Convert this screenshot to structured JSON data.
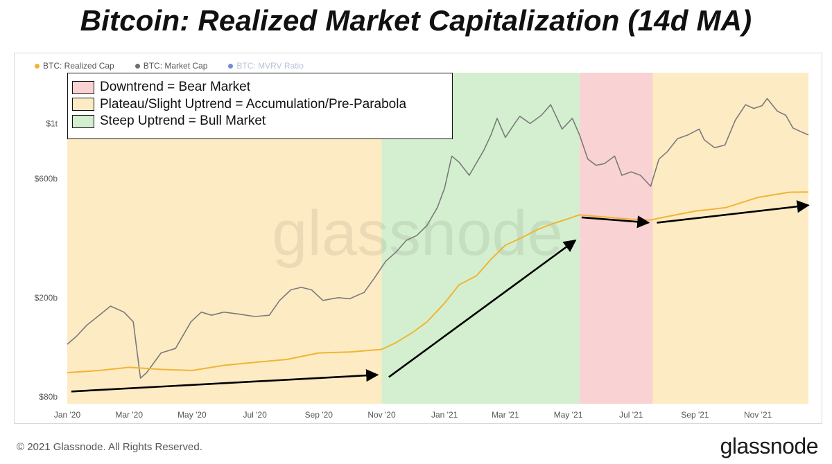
{
  "title": "Bitcoin: Realized Market Capitalization (14d MA)",
  "legend": [
    {
      "label": "BTC: Realized Cap",
      "color": "#f1b434",
      "muted": false
    },
    {
      "label": "BTC: Market Cap",
      "color": "#6e6e6e",
      "muted": false
    },
    {
      "label": "BTC: MVRV Ratio",
      "color": "#6f8fd8",
      "muted": true
    }
  ],
  "annotation_box": {
    "rows": [
      {
        "label": "Downtrend = Bear Market",
        "color": "#f9d3d3"
      },
      {
        "label": "Plateau/Slight Uptrend = Accumulation/Pre-Parabola",
        "color": "#fdebc3"
      },
      {
        "label": "Steep Uptrend = Bull Market",
        "color": "#d4efcf"
      }
    ]
  },
  "watermark": "glassnode",
  "footer": {
    "copyright": "© 2021 Glassnode. All Rights Reserved.",
    "logo": "glassnode"
  },
  "chart_data": {
    "type": "line",
    "title": "Bitcoin: Realized Market Capitalization (14d MA)",
    "xlabel": "",
    "ylabel": "",
    "y_scale": "log",
    "ylim": [
      75,
      1600
    ],
    "xlim": [
      "2020-01-01",
      "2021-12-20"
    ],
    "yticks": [
      {
        "value": 80,
        "label": "$80b"
      },
      {
        "value": 200,
        "label": "$200b"
      },
      {
        "value": 600,
        "label": "$600b"
      },
      {
        "value": 1000,
        "label": "$1t"
      }
    ],
    "xticks": [
      {
        "date": "2020-01-01",
        "label": "Jan '20"
      },
      {
        "date": "2020-03-01",
        "label": "Mar '20"
      },
      {
        "date": "2020-05-01",
        "label": "May '20"
      },
      {
        "date": "2020-07-01",
        "label": "Jul '20"
      },
      {
        "date": "2020-09-01",
        "label": "Sep '20"
      },
      {
        "date": "2020-11-01",
        "label": "Nov '20"
      },
      {
        "date": "2021-01-01",
        "label": "Jan '21"
      },
      {
        "date": "2021-03-01",
        "label": "Mar '21"
      },
      {
        "date": "2021-05-01",
        "label": "May '21"
      },
      {
        "date": "2021-07-01",
        "label": "Jul '21"
      },
      {
        "date": "2021-09-01",
        "label": "Sep '21"
      },
      {
        "date": "2021-11-01",
        "label": "Nov '21"
      }
    ],
    "regions": [
      {
        "start": "2020-01-01",
        "end": "2020-11-01",
        "type": "accumulation",
        "color": "#fdebc3"
      },
      {
        "start": "2020-11-01",
        "end": "2021-05-12",
        "type": "bull",
        "color": "#d4efcf"
      },
      {
        "start": "2021-05-12",
        "end": "2021-07-22",
        "type": "bear",
        "color": "#f9d3d3"
      },
      {
        "start": "2021-07-22",
        "end": "2021-12-20",
        "type": "accumulation",
        "color": "#fdebc3"
      }
    ],
    "series": [
      {
        "name": "BTC: Market Cap",
        "color": "#7a7a7a",
        "points": [
          [
            "2020-01-01",
            130
          ],
          [
            "2020-01-10",
            140
          ],
          [
            "2020-01-20",
            155
          ],
          [
            "2020-02-01",
            170
          ],
          [
            "2020-02-12",
            185
          ],
          [
            "2020-02-25",
            175
          ],
          [
            "2020-03-05",
            160
          ],
          [
            "2020-03-12",
            95
          ],
          [
            "2020-03-18",
            100
          ],
          [
            "2020-04-01",
            120
          ],
          [
            "2020-04-15",
            125
          ],
          [
            "2020-04-30",
            160
          ],
          [
            "2020-05-10",
            175
          ],
          [
            "2020-05-20",
            170
          ],
          [
            "2020-06-01",
            175
          ],
          [
            "2020-06-15",
            172
          ],
          [
            "2020-07-01",
            168
          ],
          [
            "2020-07-15",
            170
          ],
          [
            "2020-07-25",
            195
          ],
          [
            "2020-08-05",
            215
          ],
          [
            "2020-08-15",
            220
          ],
          [
            "2020-08-25",
            215
          ],
          [
            "2020-09-05",
            195
          ],
          [
            "2020-09-20",
            200
          ],
          [
            "2020-10-01",
            198
          ],
          [
            "2020-10-15",
            210
          ],
          [
            "2020-10-25",
            240
          ],
          [
            "2020-11-05",
            280
          ],
          [
            "2020-11-15",
            305
          ],
          [
            "2020-11-25",
            340
          ],
          [
            "2020-12-05",
            355
          ],
          [
            "2020-12-15",
            390
          ],
          [
            "2020-12-25",
            460
          ],
          [
            "2021-01-01",
            550
          ],
          [
            "2021-01-08",
            740
          ],
          [
            "2021-01-15",
            700
          ],
          [
            "2021-01-25",
            620
          ],
          [
            "2021-02-08",
            780
          ],
          [
            "2021-02-15",
            900
          ],
          [
            "2021-02-21",
            1050
          ],
          [
            "2021-03-01",
            880
          ],
          [
            "2021-03-10",
            1000
          ],
          [
            "2021-03-15",
            1070
          ],
          [
            "2021-03-25",
            1000
          ],
          [
            "2021-04-05",
            1080
          ],
          [
            "2021-04-14",
            1190
          ],
          [
            "2021-04-25",
            950
          ],
          [
            "2021-05-05",
            1050
          ],
          [
            "2021-05-12",
            900
          ],
          [
            "2021-05-20",
            720
          ],
          [
            "2021-05-28",
            680
          ],
          [
            "2021-06-05",
            690
          ],
          [
            "2021-06-15",
            740
          ],
          [
            "2021-06-22",
            620
          ],
          [
            "2021-07-01",
            640
          ],
          [
            "2021-07-10",
            620
          ],
          [
            "2021-07-20",
            560
          ],
          [
            "2021-07-28",
            720
          ],
          [
            "2021-08-05",
            770
          ],
          [
            "2021-08-15",
            870
          ],
          [
            "2021-08-25",
            900
          ],
          [
            "2021-09-05",
            950
          ],
          [
            "2021-09-10",
            860
          ],
          [
            "2021-09-20",
            800
          ],
          [
            "2021-09-30",
            820
          ],
          [
            "2021-10-10",
            1030
          ],
          [
            "2021-10-20",
            1190
          ],
          [
            "2021-10-28",
            1150
          ],
          [
            "2021-11-05",
            1180
          ],
          [
            "2021-11-10",
            1260
          ],
          [
            "2021-11-20",
            1120
          ],
          [
            "2021-11-28",
            1080
          ],
          [
            "2021-12-05",
            960
          ],
          [
            "2021-12-12",
            930
          ],
          [
            "2021-12-20",
            900
          ]
        ]
      },
      {
        "name": "BTC: Realized Cap",
        "color": "#f1b434",
        "points": [
          [
            "2020-01-01",
            100
          ],
          [
            "2020-02-01",
            102
          ],
          [
            "2020-03-01",
            105
          ],
          [
            "2020-04-01",
            103
          ],
          [
            "2020-05-01",
            102
          ],
          [
            "2020-06-01",
            107
          ],
          [
            "2020-07-01",
            110
          ],
          [
            "2020-08-01",
            113
          ],
          [
            "2020-09-01",
            120
          ],
          [
            "2020-10-01",
            121
          ],
          [
            "2020-11-01",
            124
          ],
          [
            "2020-11-15",
            132
          ],
          [
            "2020-12-01",
            145
          ],
          [
            "2020-12-15",
            160
          ],
          [
            "2021-01-01",
            190
          ],
          [
            "2021-01-15",
            225
          ],
          [
            "2021-02-01",
            245
          ],
          [
            "2021-02-15",
            285
          ],
          [
            "2021-03-01",
            325
          ],
          [
            "2021-03-15",
            345
          ],
          [
            "2021-04-01",
            375
          ],
          [
            "2021-04-15",
            395
          ],
          [
            "2021-05-01",
            415
          ],
          [
            "2021-05-12",
            430
          ],
          [
            "2021-06-01",
            423
          ],
          [
            "2021-07-01",
            413
          ],
          [
            "2021-07-20",
            410
          ],
          [
            "2021-08-01",
            420
          ],
          [
            "2021-09-01",
            445
          ],
          [
            "2021-10-01",
            460
          ],
          [
            "2021-11-01",
            505
          ],
          [
            "2021-12-01",
            530
          ],
          [
            "2021-12-20",
            531
          ]
        ]
      }
    ],
    "arrows": [
      {
        "from": [
          "2020-01-05",
          84
        ],
        "to": [
          "2020-10-28",
          98
        ]
      },
      {
        "from": [
          "2020-11-08",
          96
        ],
        "to": [
          "2021-05-08",
          340
        ]
      },
      {
        "from": [
          "2021-05-14",
          420
        ],
        "to": [
          "2021-07-18",
          400
        ]
      },
      {
        "from": [
          "2021-07-26",
          400
        ],
        "to": [
          "2021-12-20",
          470
        ]
      }
    ]
  }
}
